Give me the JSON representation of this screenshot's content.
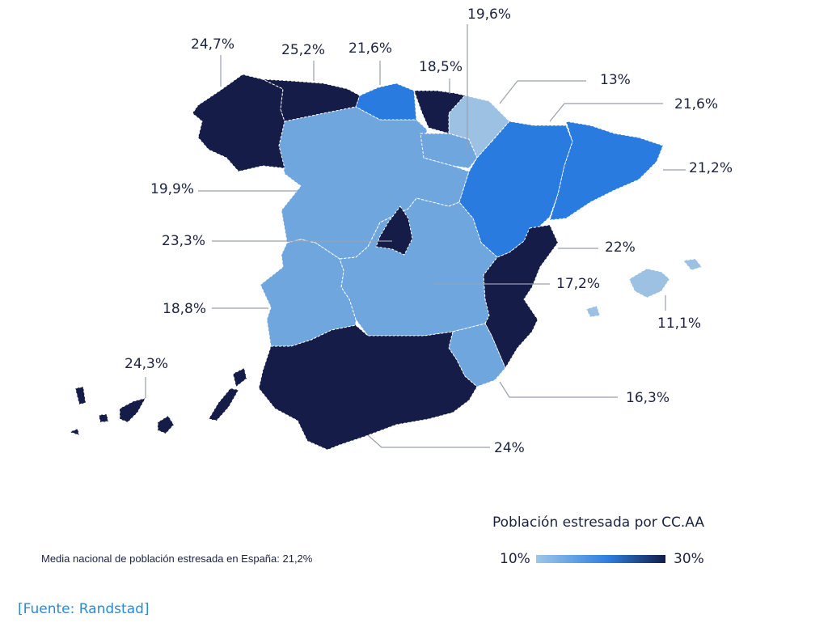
{
  "colors": {
    "darkest": "#141c47",
    "mid_blue": "#2a7be0",
    "light_blue": "#6fa6dd",
    "lightest": "#9dc1e2",
    "leader_line": "#9aa0aa",
    "text": "#1b2340",
    "link": "#2a8ad8"
  },
  "regions": [
    {
      "name": "Galicia",
      "value": "24,7%",
      "color": "#141c47"
    },
    {
      "name": "Asturias",
      "value": "25,2%",
      "color": "#141c47"
    },
    {
      "name": "Cantabria",
      "value": "21,6%",
      "color": "#2a7be0"
    },
    {
      "name": "País Vasco",
      "value": "18,5%",
      "color": "#141c47"
    },
    {
      "name": "La Rioja",
      "value": "19,6%",
      "color": "#6fa6dd"
    },
    {
      "name": "Navarra",
      "value": "13%",
      "color": "#9dc1e2"
    },
    {
      "name": "Aragón",
      "value": "21,6%",
      "color": "#2a7be0"
    },
    {
      "name": "Cataluña",
      "value": "21,2%",
      "color": "#2a7be0"
    },
    {
      "name": "Castilla y León",
      "value": "19,9%",
      "color": "#6fa6dd"
    },
    {
      "name": "Madrid",
      "value": "23,3%",
      "color": "#141c47"
    },
    {
      "name": "Comunidad Valenciana",
      "value": "22%",
      "color": "#141c47"
    },
    {
      "name": "Castilla-La Mancha",
      "value": "17,2%",
      "color": "#6fa6dd"
    },
    {
      "name": "Extremadura",
      "value": "18,8%",
      "color": "#6fa6dd"
    },
    {
      "name": "Islas Baleares",
      "value": "11,1%",
      "color": "#9dc1e2"
    },
    {
      "name": "Canarias",
      "value": "24,3%",
      "color": "#141c47"
    },
    {
      "name": "Murcia",
      "value": "16,3%",
      "color": "#6fa6dd"
    },
    {
      "name": "Andalucía",
      "value": "24%",
      "color": "#141c47"
    }
  ],
  "legend": {
    "title": "Población estresada por CC.AA",
    "min_label": "10%",
    "max_label": "30%"
  },
  "note": "Media nacional de población estresada en España: 21,2%",
  "source": "[Fuente: Randstad]"
}
